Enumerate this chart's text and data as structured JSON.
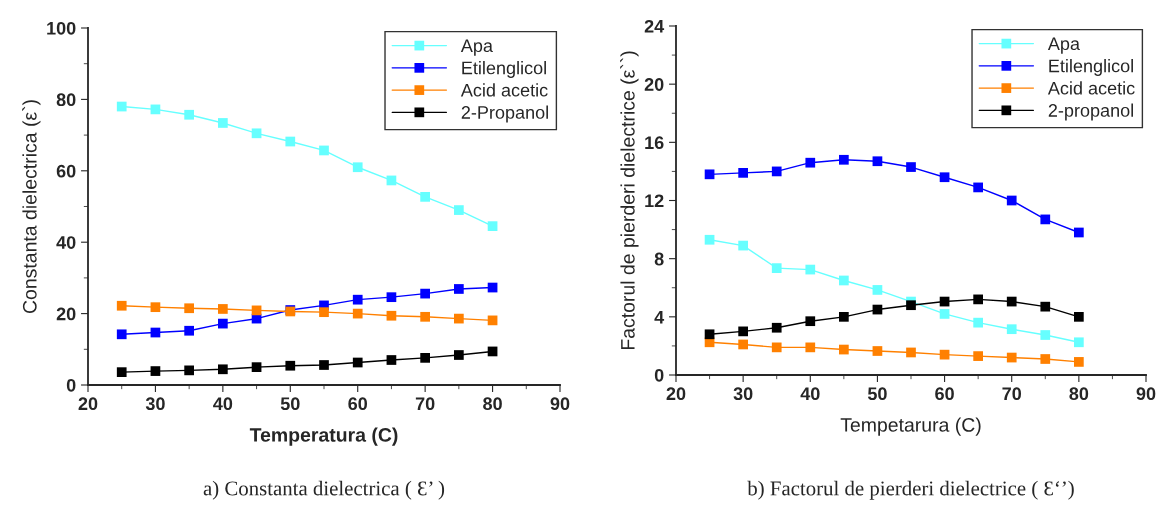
{
  "chart_data": [
    {
      "type": "line",
      "x": [
        25,
        30,
        35,
        40,
        45,
        50,
        55,
        60,
        65,
        70,
        75,
        80
      ],
      "xlabel": "Temperatura (C)",
      "ylabel": "Constanta dielectrica (ε`)",
      "xlim": [
        20,
        90
      ],
      "xticks": [
        20,
        30,
        40,
        50,
        60,
        70,
        80,
        90
      ],
      "ylim": [
        0,
        100
      ],
      "yticks": [
        0,
        20,
        40,
        60,
        80,
        100
      ],
      "marker": "square",
      "legend": "top right",
      "grid": false,
      "series": [
        {
          "name": "Apa",
          "color": "#66ffff",
          "values": [
            78,
            77.2,
            75.7,
            73.4,
            70.5,
            68.2,
            65.7,
            61,
            57.3,
            52.7,
            49,
            44.5
          ]
        },
        {
          "name": "Etilenglicol",
          "color": "#0000ff",
          "values": [
            14.2,
            14.7,
            15.2,
            17.2,
            18.6,
            21,
            22.3,
            23.9,
            24.6,
            25.6,
            26.9,
            27.3
          ]
        },
        {
          "name": "Acid acetic",
          "color": "#ff8000",
          "values": [
            22.2,
            21.8,
            21.5,
            21.3,
            20.9,
            20.6,
            20.4,
            20,
            19.4,
            19.1,
            18.6,
            18.1
          ]
        },
        {
          "name": "2-Propanol",
          "color": "#000000",
          "values": [
            3.6,
            3.9,
            4.1,
            4.4,
            5,
            5.4,
            5.6,
            6.3,
            7,
            7.6,
            8.4,
            9.4
          ]
        }
      ],
      "annotations": [
        "a) Constanta dielectrica ( Ɛ’ )"
      ]
    },
    {
      "type": "line",
      "x": [
        25,
        30,
        35,
        40,
        45,
        50,
        55,
        60,
        65,
        70,
        75,
        80
      ],
      "xlabel": "Tempetarura (C)",
      "ylabel": "Factorul de pierderi dielectrice (ε``)",
      "xlim": [
        20,
        90
      ],
      "xticks": [
        20,
        30,
        40,
        50,
        60,
        70,
        80,
        90
      ],
      "ylim": [
        0,
        24
      ],
      "yticks": [
        0,
        4,
        8,
        12,
        16,
        20,
        24
      ],
      "marker": "square",
      "legend": "top right",
      "grid": false,
      "series": [
        {
          "name": "Apa",
          "color": "#66ffff",
          "values": [
            9.3,
            8.9,
            7.35,
            7.25,
            6.5,
            5.85,
            5.05,
            4.2,
            3.6,
            3.15,
            2.75,
            2.25
          ]
        },
        {
          "name": "Etilenglicol",
          "color": "#0000ff",
          "values": [
            13.8,
            13.9,
            14.0,
            14.6,
            14.8,
            14.7,
            14.3,
            13.6,
            12.9,
            12.0,
            10.7,
            9.8
          ]
        },
        {
          "name": "Acid acetic",
          "color": "#ff8000",
          "values": [
            2.25,
            2.1,
            1.9,
            1.9,
            1.75,
            1.65,
            1.55,
            1.4,
            1.3,
            1.2,
            1.1,
            0.9
          ]
        },
        {
          "name": "2-propanol",
          "color": "#000000",
          "values": [
            2.8,
            3.0,
            3.25,
            3.7,
            4.0,
            4.5,
            4.8,
            5.05,
            5.2,
            5.05,
            4.7,
            4.0
          ]
        }
      ],
      "annotations": [
        "b) Factorul de pierderi dielectrice ( Ɛ‘’)"
      ]
    }
  ]
}
